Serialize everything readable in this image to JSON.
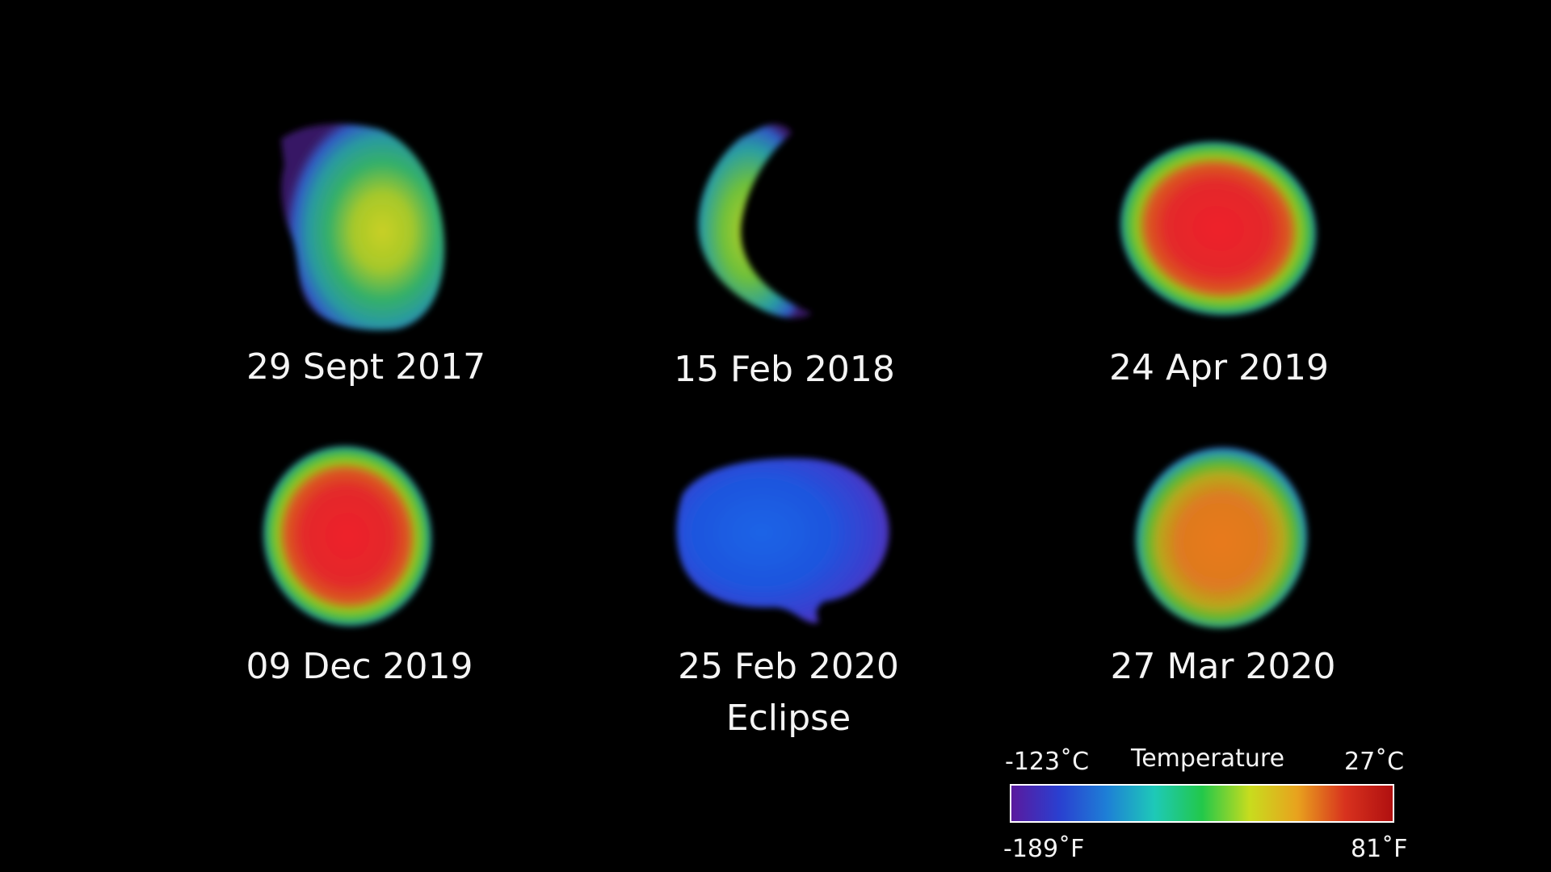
{
  "observations": [
    {
      "date": "29 Sept 2017"
    },
    {
      "date": "15 Feb 2018"
    },
    {
      "date": "24 Apr 2019"
    },
    {
      "date": "09 Dec 2019"
    },
    {
      "date": "25 Feb 2020",
      "note": "Eclipse"
    },
    {
      "date": "27 Mar 2020"
    }
  ],
  "temperature_scale": {
    "title": "Temperature",
    "min_celsius": "-123˚C",
    "max_celsius": "27˚C",
    "min_fahrenheit": "-189˚F",
    "max_fahrenheit": "81˚F",
    "colors": [
      "#5a1a9e",
      "#2a3fd0",
      "#1e7fd6",
      "#1ec9b8",
      "#22c84a",
      "#c8dc1e",
      "#e8a21e",
      "#d8321e",
      "#b01010"
    ]
  },
  "colors": {
    "background": "#000000",
    "text": "#f4f4f4"
  }
}
